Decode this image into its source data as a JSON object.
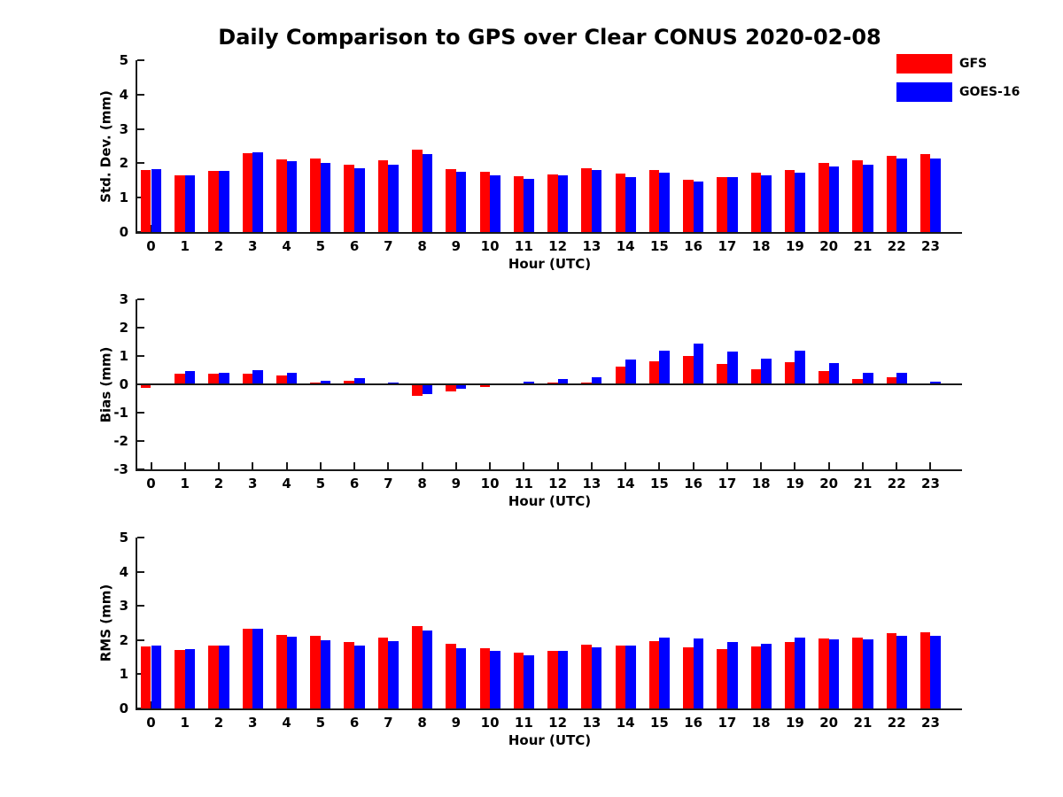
{
  "title": "Daily Comparison to GPS over Clear CONUS 2020-02-08",
  "legend": {
    "position": "top-right",
    "items": [
      {
        "label": "GFS",
        "color": "#ff0000"
      },
      {
        "label": "GOES-16",
        "color": "#0000ff"
      }
    ]
  },
  "colors": {
    "gfs": "#ff0000",
    "goes16": "#0000ff",
    "axis": "#1a1a1a",
    "text": "#000000",
    "background": "#ffffff"
  },
  "chart_data": [
    {
      "type": "bar",
      "panel": "std-dev",
      "title": "",
      "ylabel": "Std. Dev. (mm)",
      "xlabel": "Hour (UTC)",
      "ylim": [
        0,
        5
      ],
      "yticks": [
        0,
        1,
        2,
        3,
        4,
        5
      ],
      "grid": false,
      "categories": [
        "0",
        "1",
        "2",
        "3",
        "4",
        "5",
        "6",
        "7",
        "8",
        "9",
        "10",
        "11",
        "12",
        "13",
        "14",
        "15",
        "16",
        "17",
        "18",
        "19",
        "20",
        "21",
        "22",
        "23"
      ],
      "series": [
        {
          "name": "GFS",
          "color": "#ff0000",
          "values": [
            1.8,
            1.64,
            1.77,
            2.29,
            2.11,
            2.14,
            1.95,
            2.08,
            2.4,
            1.83,
            1.76,
            1.62,
            1.68,
            1.85,
            1.7,
            1.81,
            1.51,
            1.61,
            1.72,
            1.81,
            2.0,
            2.09,
            2.21,
            2.27
          ]
        },
        {
          "name": "GOES-16",
          "color": "#0000ff",
          "values": [
            1.82,
            1.66,
            1.79,
            2.31,
            2.07,
            2.0,
            1.86,
            1.97,
            2.26,
            1.74,
            1.66,
            1.55,
            1.66,
            1.8,
            1.59,
            1.72,
            1.48,
            1.61,
            1.66,
            1.72,
            1.9,
            1.97,
            2.14,
            2.13
          ]
        }
      ]
    },
    {
      "type": "bar",
      "panel": "bias",
      "title": "",
      "ylabel": "Bias (mm)",
      "xlabel": "Hour (UTC)",
      "ylim": [
        -3,
        3
      ],
      "yticks": [
        -3,
        -2,
        -1,
        0,
        1,
        2,
        3
      ],
      "grid": false,
      "categories": [
        "0",
        "1",
        "2",
        "3",
        "4",
        "5",
        "6",
        "7",
        "8",
        "9",
        "10",
        "11",
        "12",
        "13",
        "14",
        "15",
        "16",
        "17",
        "18",
        "19",
        "20",
        "21",
        "22",
        "23"
      ],
      "series": [
        {
          "name": "GFS",
          "color": "#ff0000",
          "values": [
            -0.12,
            0.37,
            0.36,
            0.38,
            0.32,
            0.07,
            0.11,
            0.0,
            -0.4,
            -0.25,
            -0.08,
            0.0,
            0.05,
            0.06,
            0.63,
            0.82,
            1.0,
            0.72,
            0.54,
            0.78,
            0.48,
            0.2,
            0.26,
            0.0
          ]
        },
        {
          "name": "GOES-16",
          "color": "#0000ff",
          "values": [
            0.0,
            0.46,
            0.42,
            0.49,
            0.41,
            0.13,
            0.21,
            0.07,
            -0.34,
            -0.17,
            0.0,
            0.1,
            0.19,
            0.26,
            0.86,
            1.2,
            1.44,
            1.17,
            0.92,
            1.2,
            0.75,
            0.4,
            0.42,
            0.09
          ]
        }
      ]
    },
    {
      "type": "bar",
      "panel": "rms",
      "title": "",
      "ylabel": "RMS (mm)",
      "xlabel": "Hour (UTC)",
      "ylim": [
        0,
        5
      ],
      "yticks": [
        0,
        1,
        2,
        3,
        4,
        5
      ],
      "grid": false,
      "categories": [
        "0",
        "1",
        "2",
        "3",
        "4",
        "5",
        "6",
        "7",
        "8",
        "9",
        "10",
        "11",
        "12",
        "13",
        "14",
        "15",
        "16",
        "17",
        "18",
        "19",
        "20",
        "21",
        "22",
        "23"
      ],
      "series": [
        {
          "name": "GFS",
          "color": "#ff0000",
          "values": [
            1.81,
            1.7,
            1.84,
            2.33,
            2.15,
            2.12,
            1.95,
            2.07,
            2.42,
            1.88,
            1.77,
            1.64,
            1.68,
            1.86,
            1.84,
            1.98,
            1.8,
            1.74,
            1.82,
            1.95,
            2.04,
            2.08,
            2.2,
            2.23
          ]
        },
        {
          "name": "GOES-16",
          "color": "#0000ff",
          "values": [
            1.83,
            1.73,
            1.84,
            2.33,
            2.1,
            2.0,
            1.85,
            1.97,
            2.28,
            1.76,
            1.68,
            1.56,
            1.68,
            1.8,
            1.84,
            2.08,
            2.05,
            1.95,
            1.88,
            2.08,
            2.02,
            2.02,
            2.13,
            2.12
          ]
        }
      ]
    }
  ]
}
